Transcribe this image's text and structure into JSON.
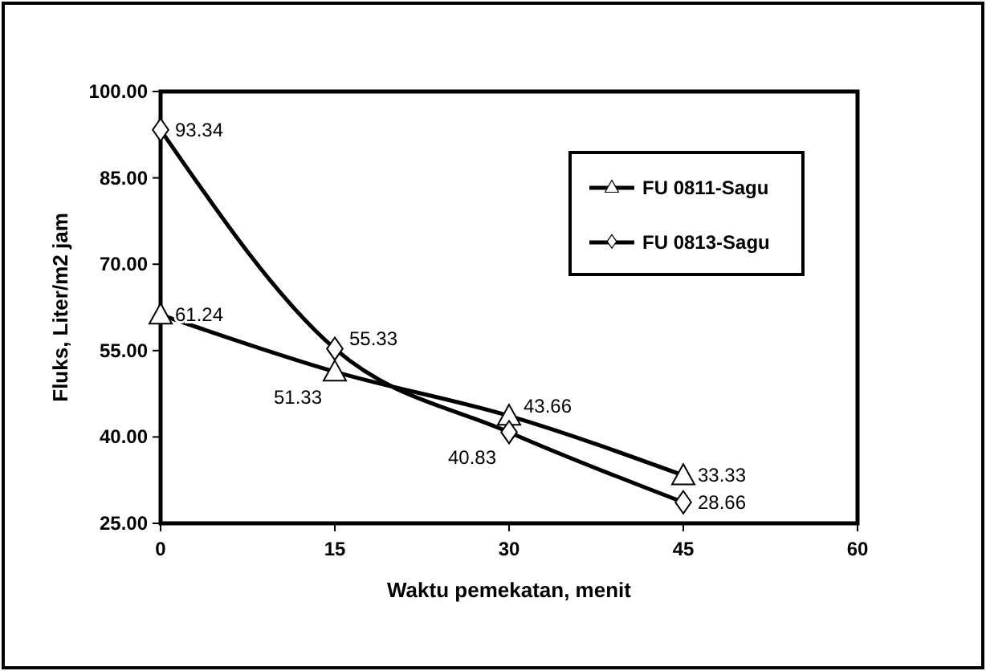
{
  "chart_data": {
    "type": "line",
    "xlabel": "Waktu pemekatan, menit",
    "ylabel": "Fluks, Liter/m2 jam",
    "x": [
      0,
      15,
      30,
      45
    ],
    "series": [
      {
        "name": "FU 0811-Sagu",
        "color": "#000000",
        "marker": "triangle",
        "values": [
          61.24,
          51.33,
          43.66,
          33.33
        ]
      },
      {
        "name": "FU 0813-Sagu",
        "color": "#000000",
        "marker": "diamond",
        "values": [
          93.34,
          55.33,
          40.83,
          28.66
        ]
      }
    ],
    "xlim": [
      0,
      60
    ],
    "xticks": [
      0,
      15,
      30,
      45,
      60
    ],
    "ylim": [
      25,
      100
    ],
    "yticks": [
      {
        "value": 25,
        "label": "25.00"
      },
      {
        "value": 40,
        "label": "40.00"
      },
      {
        "value": 55,
        "label": "55.00"
      },
      {
        "value": 70,
        "label": "70.00"
      },
      {
        "value": 85,
        "label": "85.00"
      },
      {
        "value": 100,
        "label": "100.00"
      }
    ],
    "data_labels": true,
    "legend": "top right",
    "grid": false,
    "line_style": "solid"
  }
}
